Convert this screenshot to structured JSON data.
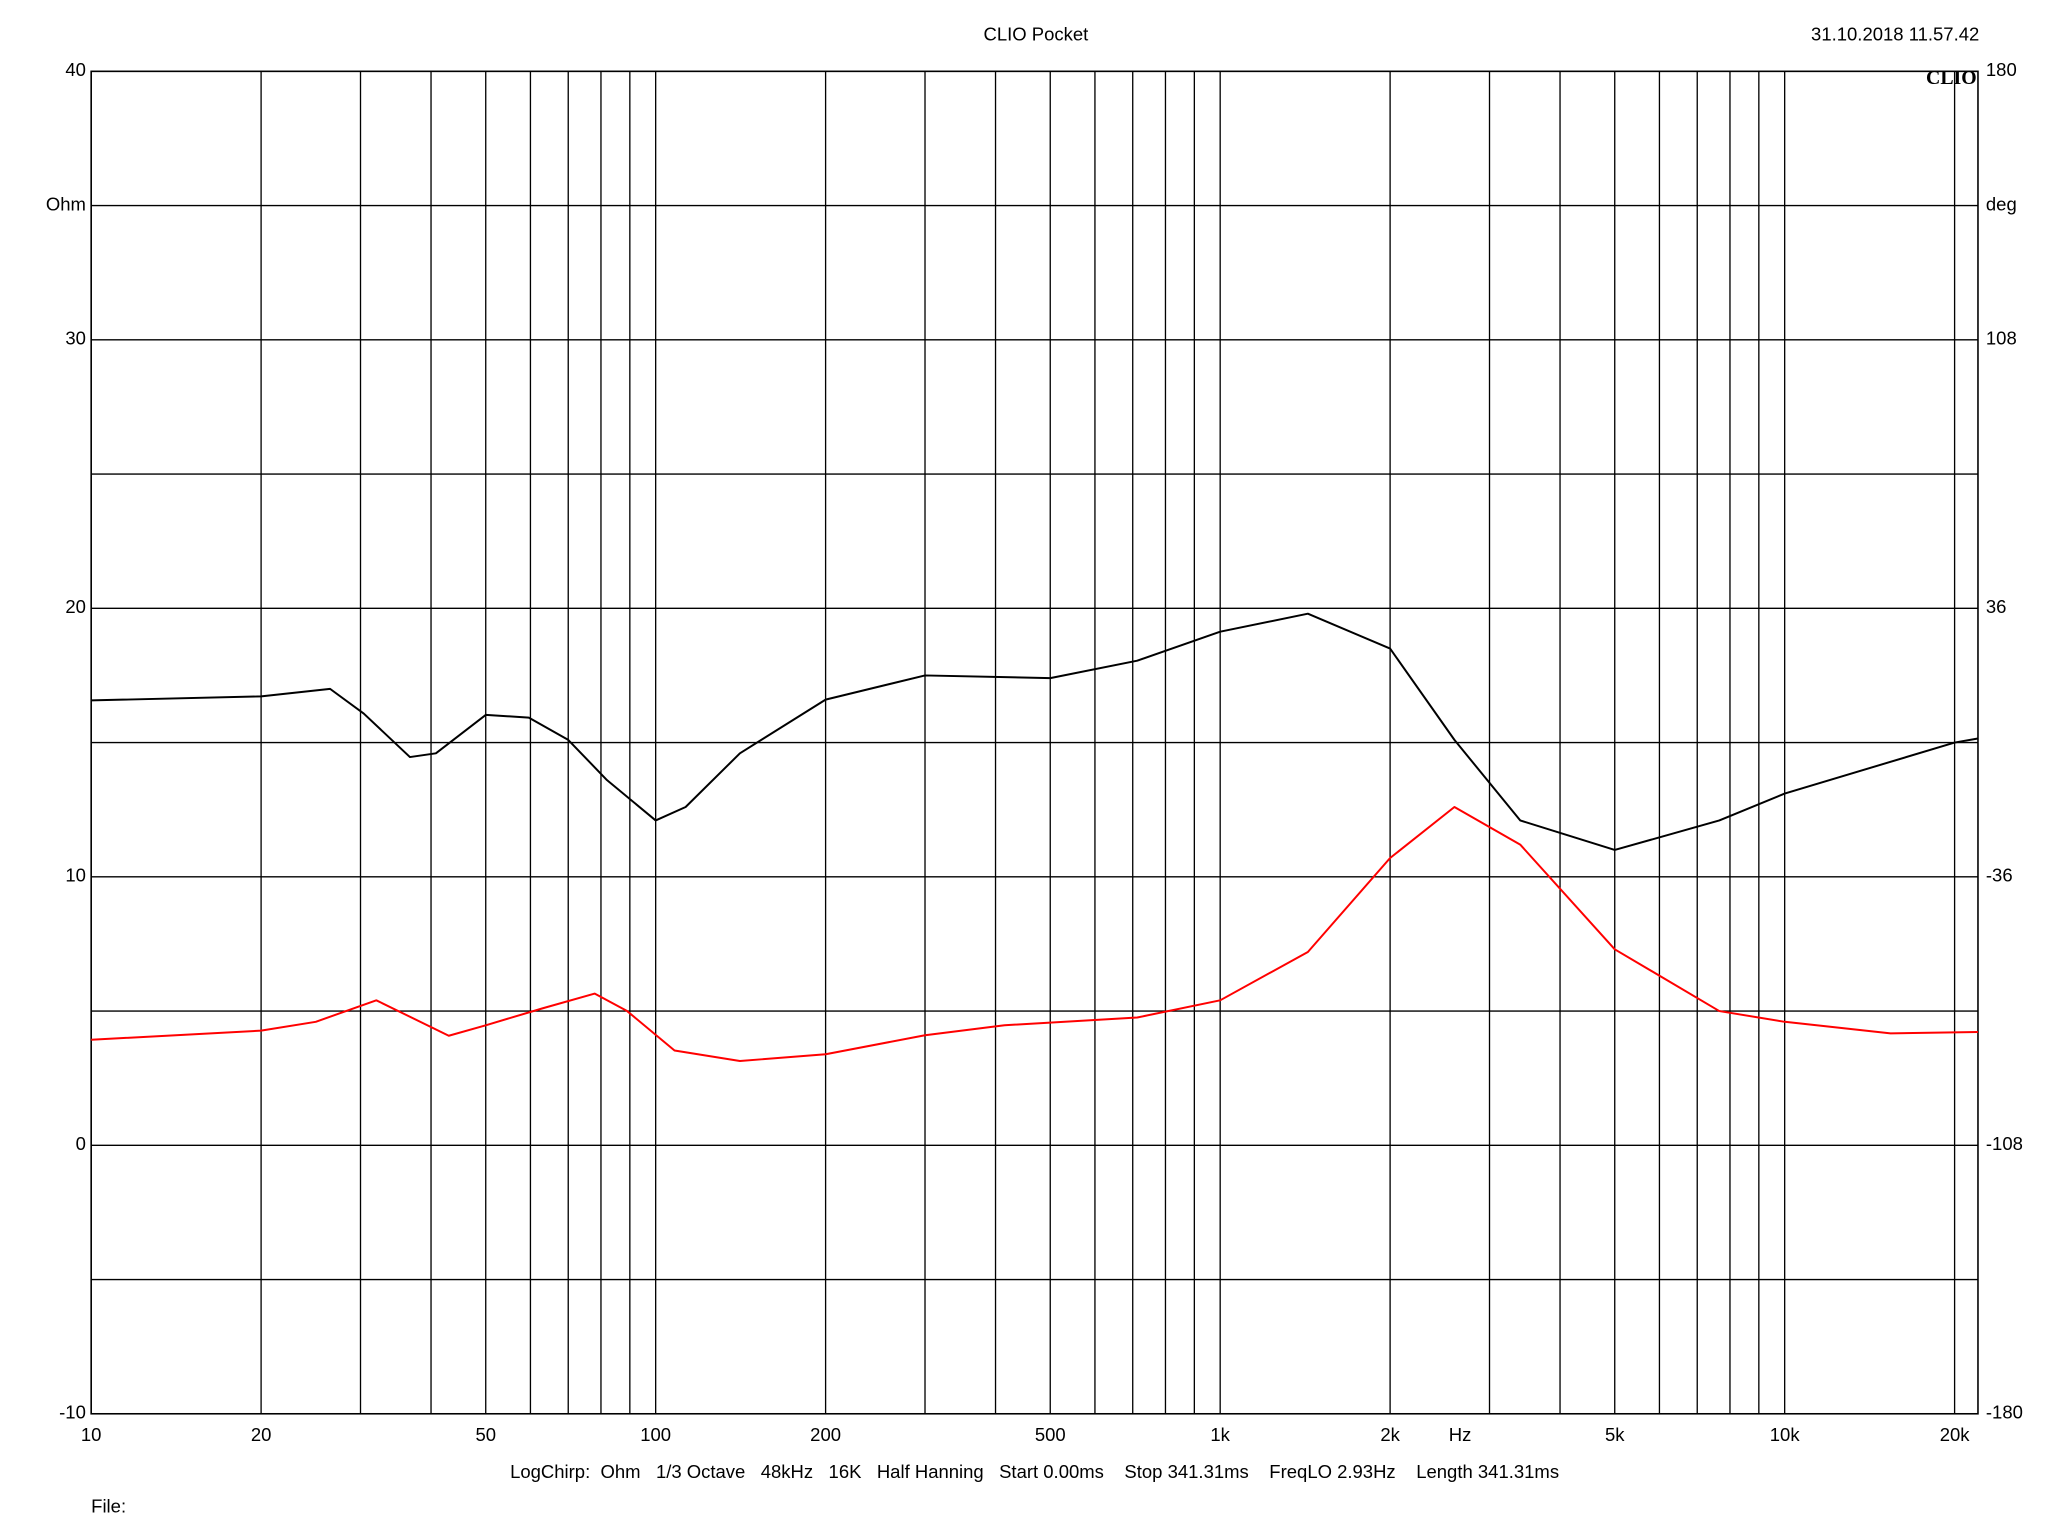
{
  "chart_data": {
    "type": "line",
    "title": "CLIO Pocket",
    "timestamp": "31.10.2018 11.57.42",
    "logo": "CLIO",
    "y_label": "Ohm",
    "y2_label": "deg",
    "x_label": "Hz",
    "footer": "LogChirp:  Ohm   1/3 Octave   48kHz   16K   Half Hanning   Start 0.00ms    Stop 341.31ms    FreqLO 2.93Hz    Length 341.31ms",
    "file_label": "File:",
    "xscale": "log",
    "xlim": [
      10,
      22000
    ],
    "ylim": [
      -10,
      40
    ],
    "y2lim": [
      -180,
      180
    ],
    "xticks": [
      10,
      20,
      50,
      100,
      200,
      500,
      {
        "value": 1000,
        "label": "1k"
      },
      {
        "value": 2000,
        "label": "2k"
      },
      {
        "value": 5000,
        "label": "5k"
      },
      {
        "value": 10000,
        "label": "10k"
      },
      {
        "value": 20000,
        "label": "20k"
      }
    ],
    "xminor": [
      30,
      40,
      60,
      70,
      80,
      90,
      300,
      400,
      600,
      700,
      800,
      900,
      3000,
      4000,
      6000,
      7000,
      8000,
      9000
    ],
    "yticks": [
      40,
      30,
      20,
      10,
      0,
      -10
    ],
    "yminor": [
      35,
      25,
      15,
      5,
      -5
    ],
    "y2ticks": [
      180,
      108,
      36,
      -36,
      -108,
      -180
    ],
    "grid": true,
    "series": [
      {
        "color": "#000000",
        "x": [
          10,
          20,
          26.5,
          30.4,
          36.7,
          40.8,
          50,
          59.6,
          70,
          82,
          100,
          113,
          141,
          200,
          300,
          500,
          713,
          1000,
          1430,
          2000,
          2600,
          3400,
          5000,
          7660,
          10000,
          20000,
          22000
        ],
        "values": [
          16.57,
          16.72,
          17.0,
          16.08,
          14.46,
          14.6,
          16.03,
          15.93,
          15.1,
          13.6,
          12.1,
          12.6,
          14.6,
          16.6,
          17.5,
          17.4,
          18.05,
          19.13,
          19.8,
          18.5,
          15.1,
          12.1,
          11.0,
          12.1,
          13.1,
          15.0,
          15.15
        ]
      },
      {
        "color": "#ff0000",
        "x": [
          10,
          20,
          25,
          32,
          43,
          50,
          63,
          78,
          89,
          108,
          141,
          200,
          300,
          415,
          713,
          1000,
          1430,
          2000,
          2600,
          3400,
          5000,
          7660,
          10000,
          15400,
          22000
        ],
        "values": [
          3.93,
          4.27,
          4.6,
          5.4,
          4.08,
          4.47,
          5.1,
          5.65,
          5.0,
          3.53,
          3.14,
          3.39,
          4.1,
          4.47,
          4.76,
          5.4,
          7.2,
          10.7,
          12.6,
          11.2,
          7.3,
          5.0,
          4.6,
          4.17,
          4.22
        ]
      }
    ]
  }
}
